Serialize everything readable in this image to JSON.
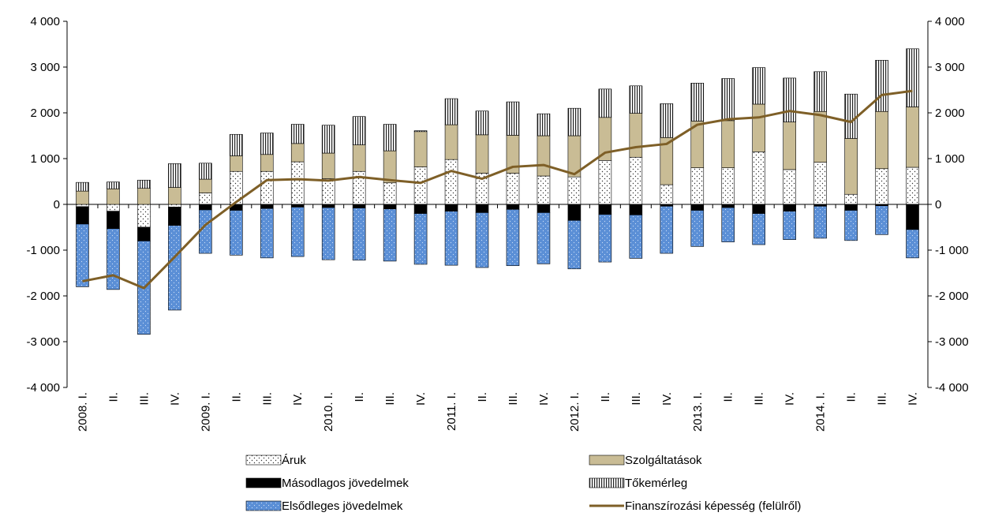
{
  "chart_data": {
    "type": "bar",
    "stacked": true,
    "categories": [
      "2008. I.",
      "II.",
      "III.",
      "IV.",
      "2009. I.",
      "II.",
      "III.",
      "IV.",
      "2010. I.",
      "II.",
      "III.",
      "IV.",
      "2011. I.",
      "II.",
      "III.",
      "IV.",
      "2012. I.",
      "II.",
      "III.",
      "IV.",
      "2013. I.",
      "II.",
      "III.",
      "IV.",
      "2014. I.",
      "II.",
      "III.",
      "IV."
    ],
    "ylim": [
      -4000,
      4000
    ],
    "yticks": [
      4000,
      3000,
      2000,
      1000,
      0,
      -1000,
      -2000,
      -3000,
      -4000
    ],
    "ytick_labels": [
      "4 000",
      "3 000",
      "2 000",
      "1 000",
      "0",
      "-1 000",
      "-2 000",
      "-3 000",
      "-4 000"
    ],
    "grid": false,
    "legend_position": "bottom",
    "series": [
      {
        "name": "Áruk",
        "pattern": "dots",
        "color": "#ffffff",
        "values": [
          -50,
          -150,
          -500,
          -60,
          250,
          720,
          720,
          930,
          560,
          720,
          470,
          820,
          980,
          680,
          680,
          620,
          600,
          960,
          1030,
          430,
          800,
          800,
          1150,
          760,
          920,
          220,
          780,
          810
        ]
      },
      {
        "name": "Szolgáltatások",
        "pattern": "solid",
        "color": "#c9bc95",
        "values": [
          290,
          340,
          350,
          370,
          300,
          340,
          370,
          400,
          560,
          580,
          700,
          770,
          760,
          840,
          830,
          880,
          900,
          940,
          960,
          1030,
          1020,
          1030,
          1040,
          1040,
          1110,
          1220,
          1250,
          1320
        ]
      },
      {
        "name": "Másodlagos jövedelmek",
        "pattern": "solid",
        "color": "#000000",
        "values": [
          -380,
          -380,
          -300,
          -400,
          -120,
          -130,
          -90,
          -60,
          -70,
          -80,
          -100,
          -200,
          -150,
          -180,
          -110,
          -180,
          -350,
          -220,
          -230,
          -40,
          -130,
          -70,
          -200,
          -150,
          -40,
          -130,
          -30,
          -550
        ]
      },
      {
        "name": "Tőkemérleg",
        "pattern": "vstripes",
        "color": "#ffffff",
        "values": [
          190,
          150,
          180,
          520,
          350,
          470,
          470,
          420,
          610,
          620,
          580,
          20,
          570,
          520,
          730,
          480,
          600,
          620,
          600,
          740,
          830,
          920,
          800,
          960,
          870,
          970,
          1120,
          1270
        ]
      },
      {
        "name": "Elsődleges jövedelmek",
        "pattern": "dots-blue",
        "color": "#5b8fd6",
        "values": [
          -1370,
          -1330,
          -2040,
          -1850,
          -950,
          -980,
          -1080,
          -1080,
          -1140,
          -1140,
          -1140,
          -1110,
          -1180,
          -1200,
          -1230,
          -1120,
          -1060,
          -1040,
          -950,
          -1030,
          -790,
          -750,
          -680,
          -620,
          -700,
          -660,
          -630,
          -620
        ]
      },
      {
        "name": "Finanszírozási képesség (felülről)",
        "type": "line",
        "color": "#7e5f27",
        "values": [
          -1680,
          -1550,
          -1830,
          -1150,
          -450,
          50,
          530,
          550,
          520,
          600,
          530,
          470,
          730,
          560,
          820,
          860,
          660,
          1130,
          1250,
          1320,
          1740,
          1860,
          1900,
          2040,
          1950,
          1800,
          2390,
          2480
        ]
      }
    ]
  }
}
